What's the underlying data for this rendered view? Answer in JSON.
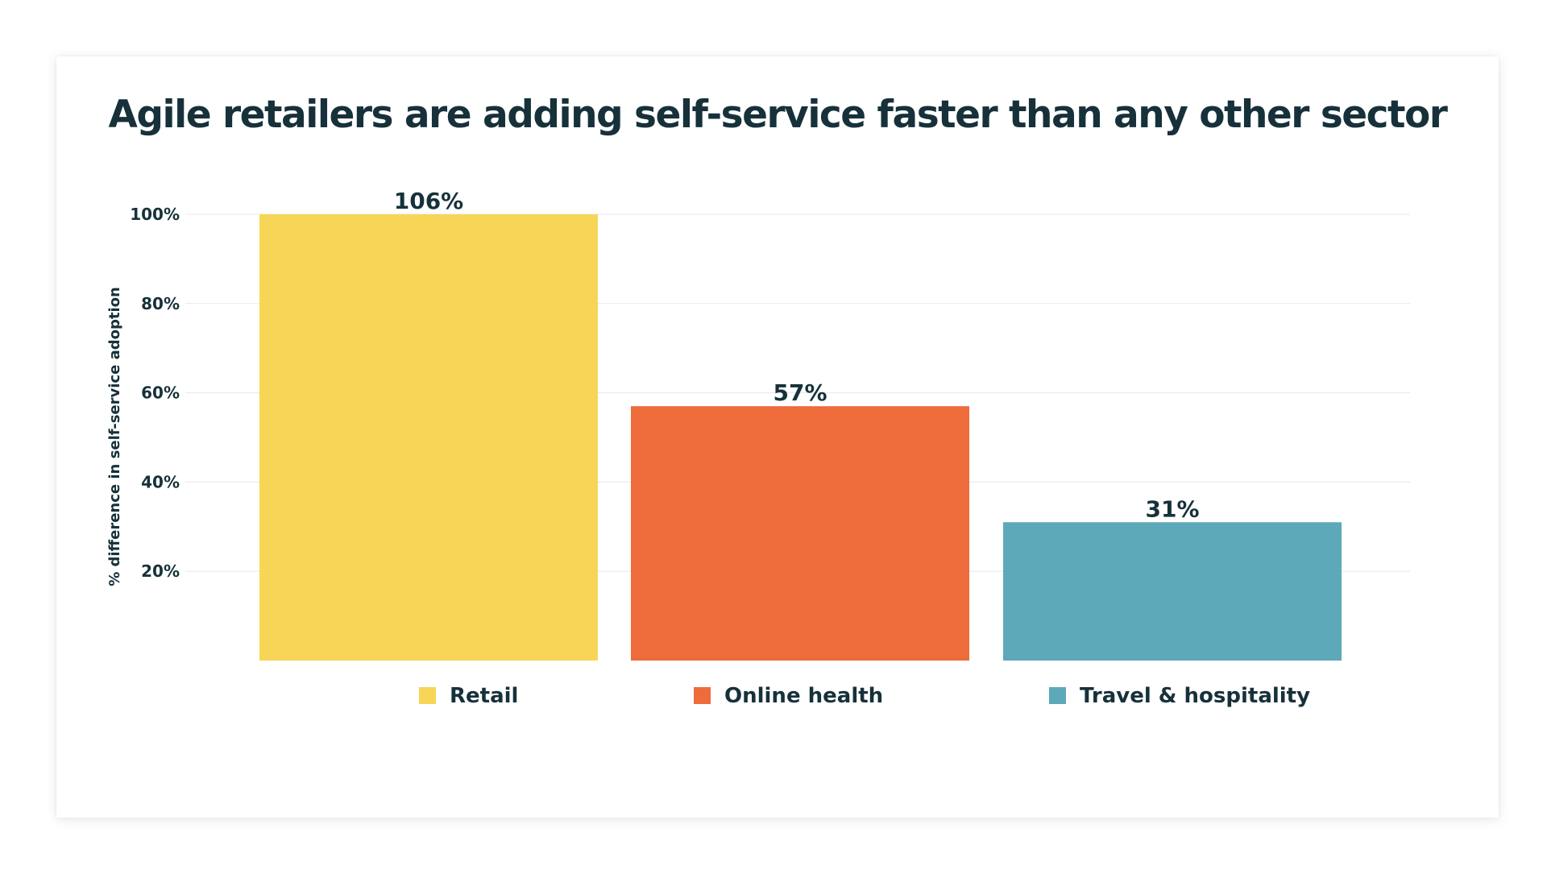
{
  "chart_data": {
    "type": "bar",
    "title": "Agile retailers are adding self-service faster than any other sector",
    "ylabel": "% difference in self-service adoption",
    "xlabel": "",
    "categories": [
      "Retail",
      "Online health",
      "Travel & hospitality"
    ],
    "values": [
      106,
      57,
      31
    ],
    "data_labels": [
      "106%",
      "57%",
      "31%"
    ],
    "colors": [
      "#f7d657",
      "#ee6b3b",
      "#5ea9b9"
    ],
    "ylim": [
      0,
      100
    ],
    "yticks": [
      20,
      40,
      60,
      80,
      100
    ],
    "ytick_labels": [
      "20%",
      "40%",
      "60%",
      "80%",
      "100%"
    ],
    "grid": true,
    "legend_position": "bottom"
  }
}
